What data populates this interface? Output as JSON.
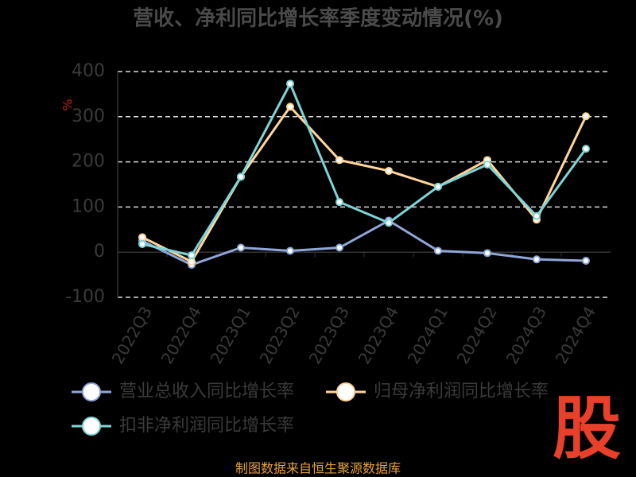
{
  "chart_data": {
    "type": "line",
    "title": "营收、净利同比增长率季度变动情况(%)",
    "y_label": "%",
    "categories": [
      "2022Q3",
      "2022Q4",
      "2023Q1",
      "2023Q2",
      "2023Q3",
      "2023Q4",
      "2024Q1",
      "2024Q2",
      "2024Q3",
      "2024Q4"
    ],
    "series": [
      {
        "name": "营业总收入同比增长率",
        "color": "#8fa6d8",
        "values": [
          25,
          -28,
          10,
          3,
          10,
          70,
          3,
          -2,
          -16,
          -19
        ]
      },
      {
        "name": "归母净利润同比增长率",
        "color": "#ffd59a",
        "values": [
          33,
          -21,
          167,
          322,
          204,
          180,
          145,
          204,
          72,
          301
        ]
      },
      {
        "name": "扣非净利润同比增长率",
        "color": "#7fd3d6",
        "values": [
          18,
          -7,
          167,
          373,
          111,
          65,
          145,
          194,
          80,
          229
        ]
      }
    ],
    "ylim": [
      -100,
      400
    ],
    "yticks": [
      -100,
      0,
      100,
      200,
      300,
      400
    ],
    "grid": true,
    "source": "制图数据来自恒生聚源数据库"
  },
  "logo": "股"
}
